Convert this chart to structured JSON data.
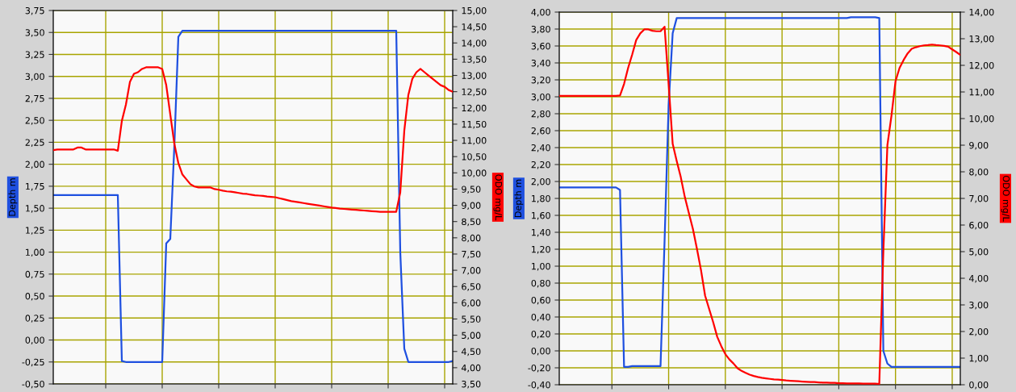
{
  "chart_data": [
    {
      "type": "line",
      "ylabel": "Depth m",
      "y2label": "ODO mg/L",
      "grid": true,
      "tick_labels": "y",
      "categories": [
        null,
        null,
        null,
        null,
        null,
        null,
        null,
        null,
        null,
        null,
        null,
        null,
        null,
        null,
        null,
        null,
        null,
        null,
        null,
        null,
        null,
        null,
        null,
        null,
        null,
        null,
        null,
        null,
        null,
        null,
        null,
        null,
        null,
        null,
        null,
        null,
        null,
        null,
        null,
        null,
        null,
        null,
        null,
        null,
        null,
        null,
        null,
        null,
        null,
        null,
        null,
        null,
        null,
        null,
        null,
        null,
        null,
        null,
        null,
        null,
        null,
        null,
        null,
        null,
        null,
        null,
        null,
        null,
        null,
        null,
        null,
        null,
        null,
        null,
        null,
        null,
        null,
        null,
        null,
        null,
        null,
        null,
        null,
        null,
        null,
        null,
        null,
        null,
        null,
        null,
        null,
        null,
        null,
        null,
        null,
        null,
        null,
        null,
        null,
        null
      ],
      "ylim": [
        -0.5,
        3.75
      ],
      "yticks": [
        {
          "value": -0.5,
          "label": "-0,50"
        },
        {
          "value": -0.25,
          "label": "-0,25"
        },
        {
          "value": 0,
          "label": "0,00"
        },
        {
          "value": 0.25,
          "label": "0,25"
        },
        {
          "value": 0.5,
          "label": "0,50"
        },
        {
          "value": 0.75,
          "label": "0,75"
        },
        {
          "value": 1.0,
          "label": "1,00"
        },
        {
          "value": 1.25,
          "label": "1,25"
        },
        {
          "value": 1.5,
          "label": "1,50"
        },
        {
          "value": 1.75,
          "label": "1,75"
        },
        {
          "value": 2.0,
          "label": "2,00"
        },
        {
          "value": 2.25,
          "label": "2,25"
        },
        {
          "value": 2.5,
          "label": "2,50"
        },
        {
          "value": 2.75,
          "label": "2,75"
        },
        {
          "value": 3.0,
          "label": "3,00"
        },
        {
          "value": 3.25,
          "label": "3,25"
        },
        {
          "value": 3.5,
          "label": "3,50"
        },
        {
          "value": 3.75,
          "label": "3,75"
        }
      ],
      "y2lim": [
        3.5,
        15.0
      ],
      "y2ticks": [
        {
          "value": 3.5,
          "label": "3,50"
        },
        {
          "value": 4.0,
          "label": "4,00"
        },
        {
          "value": 4.5,
          "label": "4,50"
        },
        {
          "value": 5.0,
          "label": "5,00"
        },
        {
          "value": 5.5,
          "label": "5,50"
        },
        {
          "value": 6.0,
          "label": "6,00"
        },
        {
          "value": 6.5,
          "label": "6,50"
        },
        {
          "value": 7.0,
          "label": "7,00"
        },
        {
          "value": 7.5,
          "label": "7,50"
        },
        {
          "value": 8.0,
          "label": "8,00"
        },
        {
          "value": 8.5,
          "label": "8,50"
        },
        {
          "value": 9.0,
          "label": "9,00"
        },
        {
          "value": 9.5,
          "label": "9,50"
        },
        {
          "value": 10.0,
          "label": "10,00"
        },
        {
          "value": 10.5,
          "label": "10,50"
        },
        {
          "value": 11.0,
          "label": "11,00"
        },
        {
          "value": 11.5,
          "label": "11,50"
        },
        {
          "value": 12.0,
          "label": "12,00"
        },
        {
          "value": 12.5,
          "label": "12,50"
        },
        {
          "value": 13.0,
          "label": "13,00"
        },
        {
          "value": 13.5,
          "label": "13,50"
        },
        {
          "value": 14.0,
          "label": "14,00"
        },
        {
          "value": 14.5,
          "label": "14,50"
        },
        {
          "value": 15.0,
          "label": "15,00"
        }
      ],
      "series": [
        {
          "color": "#1f50e0",
          "values": [
            1.65,
            1.65,
            1.65,
            1.65,
            1.65,
            1.65,
            1.65,
            1.65,
            1.65,
            1.65,
            1.65,
            1.65,
            1.65,
            1.65,
            1.65,
            1.65,
            1.65,
            -0.24,
            -0.25,
            -0.25,
            -0.25,
            -0.25,
            -0.25,
            -0.25,
            -0.25,
            -0.25,
            -0.25,
            -0.25,
            1.1,
            1.15,
            2.2,
            3.45,
            3.52,
            3.52,
            3.52,
            3.52,
            3.52,
            3.52,
            3.52,
            3.52,
            3.52,
            3.52,
            3.52,
            3.52,
            3.52,
            3.52,
            3.52,
            3.52,
            3.52,
            3.52,
            3.52,
            3.52,
            3.52,
            3.52,
            3.52,
            3.52,
            3.52,
            3.52,
            3.52,
            3.52,
            3.52,
            3.52,
            3.52,
            3.52,
            3.52,
            3.52,
            3.52,
            3.52,
            3.52,
            3.52,
            3.52,
            3.52,
            3.52,
            3.52,
            3.52,
            3.52,
            3.52,
            3.52,
            3.52,
            3.52,
            3.52,
            3.52,
            3.52,
            3.52,
            3.52,
            3.52,
            1.0,
            -0.1,
            -0.25,
            -0.25,
            -0.25,
            -0.25,
            -0.25,
            -0.25,
            -0.25,
            -0.25,
            -0.25,
            -0.25,
            -0.25,
            -0.24
          ]
        },
        {
          "color": "#ff0000",
          "axis": "y2",
          "values": [
            10.7,
            10.72,
            10.72,
            10.72,
            10.72,
            10.72,
            10.78,
            10.78,
            10.72,
            10.72,
            10.72,
            10.72,
            10.72,
            10.72,
            10.72,
            10.72,
            10.68,
            11.6,
            12.1,
            12.8,
            13.05,
            13.1,
            13.2,
            13.25,
            13.25,
            13.25,
            13.25,
            13.2,
            12.7,
            11.8,
            10.9,
            10.3,
            9.95,
            9.8,
            9.65,
            9.58,
            9.55,
            9.55,
            9.55,
            9.55,
            9.5,
            9.48,
            9.45,
            9.43,
            9.42,
            9.4,
            9.38,
            9.36,
            9.35,
            9.33,
            9.31,
            9.3,
            9.29,
            9.27,
            9.26,
            9.25,
            9.22,
            9.19,
            9.16,
            9.13,
            9.11,
            9.09,
            9.07,
            9.05,
            9.03,
            9.01,
            8.99,
            8.97,
            8.95,
            8.93,
            8.92,
            8.9,
            8.89,
            8.88,
            8.87,
            8.86,
            8.85,
            8.84,
            8.83,
            8.82,
            8.81,
            8.8,
            8.8,
            8.8,
            8.8,
            8.8,
            9.4,
            11.3,
            12.4,
            12.9,
            13.1,
            13.2,
            13.1,
            13.0,
            12.9,
            12.8,
            12.7,
            12.65,
            12.55,
            12.5
          ]
        }
      ]
    },
    {
      "type": "line",
      "ylabel": "Depth m",
      "y2label": "ODO mg/L",
      "grid": true,
      "tick_labels": "y",
      "categories": [
        null,
        null,
        null,
        null,
        null,
        null,
        null,
        null,
        null,
        null,
        null,
        null,
        null,
        null,
        null,
        null,
        null,
        null,
        null,
        null,
        null,
        null,
        null,
        null,
        null,
        null,
        null,
        null,
        null,
        null,
        null,
        null,
        null,
        null,
        null,
        null,
        null,
        null,
        null,
        null,
        null,
        null,
        null,
        null,
        null,
        null,
        null,
        null,
        null,
        null,
        null,
        null,
        null,
        null,
        null,
        null,
        null,
        null,
        null,
        null,
        null,
        null,
        null,
        null,
        null,
        null,
        null,
        null,
        null,
        null,
        null,
        null,
        null,
        null,
        null,
        null,
        null,
        null,
        null,
        null,
        null,
        null,
        null,
        null,
        null,
        null,
        null,
        null,
        null,
        null,
        null,
        null,
        null,
        null,
        null,
        null,
        null,
        null,
        null,
        null
      ],
      "ylim": [
        -0.4,
        4.0
      ],
      "yticks": [
        {
          "value": -0.4,
          "label": "-0,40"
        },
        {
          "value": -0.2,
          "label": "-0,20"
        },
        {
          "value": 0,
          "label": "0,00"
        },
        {
          "value": 0.2,
          "label": "0,20"
        },
        {
          "value": 0.4,
          "label": "0,40"
        },
        {
          "value": 0.6,
          "label": "0,60"
        },
        {
          "value": 0.8,
          "label": "0,80"
        },
        {
          "value": 1.0,
          "label": "1,00"
        },
        {
          "value": 1.2,
          "label": "1,20"
        },
        {
          "value": 1.4,
          "label": "1,40"
        },
        {
          "value": 1.6,
          "label": "1,60"
        },
        {
          "value": 1.8,
          "label": "1,80"
        },
        {
          "value": 2.0,
          "label": "2,00"
        },
        {
          "value": 2.2,
          "label": "2,20"
        },
        {
          "value": 2.4,
          "label": "2,40"
        },
        {
          "value": 2.6,
          "label": "2,60"
        },
        {
          "value": 2.8,
          "label": "2,80"
        },
        {
          "value": 3.0,
          "label": "3,00"
        },
        {
          "value": 3.2,
          "label": "3,20"
        },
        {
          "value": 3.4,
          "label": "3,40"
        },
        {
          "value": 3.6,
          "label": "3,60"
        },
        {
          "value": 3.8,
          "label": "3,80"
        },
        {
          "value": 4.0,
          "label": "4,00"
        }
      ],
      "y2lim": [
        0,
        14.0
      ],
      "y2ticks": [
        {
          "value": 0,
          "label": "0,00"
        },
        {
          "value": 1,
          "label": "1,00"
        },
        {
          "value": 2,
          "label": "2,00"
        },
        {
          "value": 3,
          "label": "3,00"
        },
        {
          "value": 4,
          "label": "4,00"
        },
        {
          "value": 5,
          "label": "5,00"
        },
        {
          "value": 6,
          "label": "6,00"
        },
        {
          "value": 7,
          "label": "7,00"
        },
        {
          "value": 8,
          "label": "8,00"
        },
        {
          "value": 9,
          "label": "9,00"
        },
        {
          "value": 10,
          "label": "10,00"
        },
        {
          "value": 11,
          "label": "11,00"
        },
        {
          "value": 12,
          "label": "12,00"
        },
        {
          "value": 13,
          "label": "13,00"
        },
        {
          "value": 14,
          "label": "14,00"
        }
      ],
      "series": [
        {
          "color": "#1f50e0",
          "values": [
            1.93,
            1.93,
            1.93,
            1.93,
            1.93,
            1.93,
            1.93,
            1.93,
            1.93,
            1.93,
            1.93,
            1.93,
            1.93,
            1.93,
            1.93,
            1.9,
            -0.19,
            -0.19,
            -0.18,
            -0.18,
            -0.18,
            -0.18,
            -0.18,
            -0.18,
            -0.18,
            -0.18,
            1.3,
            2.9,
            3.75,
            3.93,
            3.93,
            3.93,
            3.93,
            3.93,
            3.93,
            3.93,
            3.93,
            3.93,
            3.93,
            3.93,
            3.93,
            3.93,
            3.93,
            3.93,
            3.93,
            3.93,
            3.93,
            3.93,
            3.93,
            3.93,
            3.93,
            3.93,
            3.93,
            3.93,
            3.93,
            3.93,
            3.93,
            3.93,
            3.93,
            3.93,
            3.93,
            3.93,
            3.93,
            3.93,
            3.93,
            3.93,
            3.93,
            3.93,
            3.93,
            3.93,
            3.93,
            3.93,
            3.94,
            3.94,
            3.94,
            3.94,
            3.94,
            3.94,
            3.94,
            3.93,
            0.0,
            -0.15,
            -0.19,
            -0.19,
            -0.19,
            -0.19,
            -0.19,
            -0.19,
            -0.19,
            -0.19,
            -0.19,
            -0.19,
            -0.19,
            -0.19,
            -0.19,
            -0.19,
            -0.19,
            -0.19,
            -0.19,
            -0.19
          ]
        },
        {
          "color": "#ff0000",
          "axis": "y2",
          "values": [
            10.85,
            10.85,
            10.85,
            10.85,
            10.85,
            10.85,
            10.85,
            10.85,
            10.85,
            10.85,
            10.85,
            10.85,
            10.85,
            10.85,
            10.85,
            10.87,
            11.3,
            11.9,
            12.4,
            12.95,
            13.2,
            13.35,
            13.35,
            13.3,
            13.28,
            13.28,
            13.45,
            11.3,
            9.05,
            8.4,
            7.8,
            7.05,
            6.45,
            5.85,
            5.1,
            4.3,
            3.35,
            2.85,
            2.35,
            1.8,
            1.45,
            1.15,
            0.95,
            0.8,
            0.62,
            0.52,
            0.45,
            0.38,
            0.33,
            0.29,
            0.26,
            0.24,
            0.22,
            0.2,
            0.19,
            0.18,
            0.16,
            0.15,
            0.14,
            0.13,
            0.12,
            0.11,
            0.1,
            0.1,
            0.09,
            0.08,
            0.08,
            0.07,
            0.07,
            0.06,
            0.06,
            0.05,
            0.05,
            0.05,
            0.05,
            0.04,
            0.04,
            0.04,
            0.04,
            0.03,
            5.0,
            9.0,
            10.1,
            11.4,
            11.9,
            12.2,
            12.45,
            12.62,
            12.68,
            12.72,
            12.75,
            12.76,
            12.78,
            12.76,
            12.75,
            12.73,
            12.7,
            12.6,
            12.5,
            12.39
          ]
        }
      ]
    }
  ]
}
